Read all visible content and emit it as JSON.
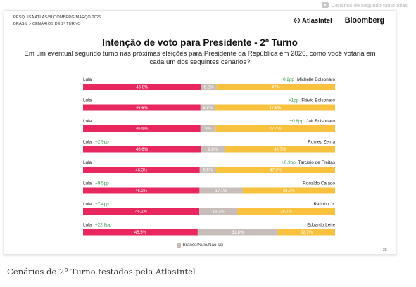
{
  "top_caption": "Cenários de segundo turno atlas",
  "header": {
    "line1": "PESQUISA ATLAS/BLOOMBERG MARÇO 2026",
    "line2": "BRASIL > CENÁRIOS DE 2º TURNO",
    "brand1": "AtlasIntel",
    "brand2": "Bloomberg"
  },
  "page_number": "35",
  "bottom_caption": "Cenários de 2º Turno testados pela AtlasIntel",
  "colors": {
    "lula": "#e8275f",
    "blank": "#c8bdb8",
    "opponent": "#f8c13e",
    "delta": "#2f9a4a"
  },
  "chart_data": {
    "type": "bar",
    "orientation": "horizontal",
    "stacked": true,
    "normalized": true,
    "title": "Intenção de voto para Presidente - 2º Turno",
    "subtitle": "Em um eventual segundo turno nas próximas eleições para Presidente da República em 2026, como você votaria em cada um dos seguintes cenários?",
    "legend": [
      "Branco/Nulo/Não sei"
    ],
    "legend_position": "bottom",
    "rows": [
      {
        "left_name": "Lula",
        "left_delta": "",
        "right_name": "Michelle Bolsonaro",
        "right_delta": "+0.2pp",
        "lula": 46.8,
        "blank": 6.2,
        "opponent": 47,
        "lula_label": "46.8%",
        "blank_label": "6.2%",
        "opponent_label": "47%"
      },
      {
        "left_name": "Lula",
        "left_delta": "",
        "right_name": "Flávio Bolsonaro",
        "right_delta": "+1pp",
        "lula": 46.6,
        "blank": 5.8,
        "opponent": 47.6,
        "lula_label": "46.6%",
        "blank_label": "5.8%",
        "opponent_label": "47.6%"
      },
      {
        "left_name": "Lula",
        "left_delta": "",
        "right_name": "Jair Bolsonaro",
        "right_delta": "+0.8pp",
        "lula": 46.6,
        "blank": 6,
        "opponent": 47.4,
        "lula_label": "46.6%",
        "blank_label": "6%",
        "opponent_label": "47.4%"
      },
      {
        "left_name": "Lula",
        "left_delta": "+2.9pp",
        "right_name": "Romeu Zema",
        "right_delta": "",
        "lula": 46.6,
        "blank": 9.6,
        "opponent": 43.7,
        "lula_label": "46.6%",
        "blank_label": "9.6%",
        "opponent_label": "43.7%"
      },
      {
        "left_name": "Lula",
        "left_delta": "",
        "right_name": "Tarcísio de Freitas",
        "right_delta": "+0.9pp",
        "lula": 46.3,
        "blank": 6.5,
        "opponent": 47.2,
        "lula_label": "46.3%",
        "blank_label": "6.5%",
        "opponent_label": "47.2%"
      },
      {
        "left_name": "Lula",
        "left_delta": "+9.5pp",
        "right_name": "Ronaldo Caiado",
        "right_delta": "",
        "lula": 46.2,
        "blank": 17.1,
        "opponent": 36.7,
        "lula_label": "46.2%",
        "blank_label": "17.1%",
        "opponent_label": "36.7%"
      },
      {
        "left_name": "Lula",
        "left_delta": "+7.4pp",
        "right_name": "Ratinho Jr.",
        "right_delta": "",
        "lula": 46.1,
        "blank": 15.2,
        "opponent": 38.7,
        "lula_label": "46.1%",
        "blank_label": "15.2%",
        "opponent_label": "38.7%"
      },
      {
        "left_name": "Lula",
        "left_delta": "+22.8pp",
        "right_name": "Eduardo Leite",
        "right_delta": "",
        "lula": 45.5,
        "blank": 31.8,
        "opponent": 22.7,
        "lula_label": "45.5%",
        "blank_label": "31.8%",
        "opponent_label": "22.7%"
      }
    ]
  }
}
